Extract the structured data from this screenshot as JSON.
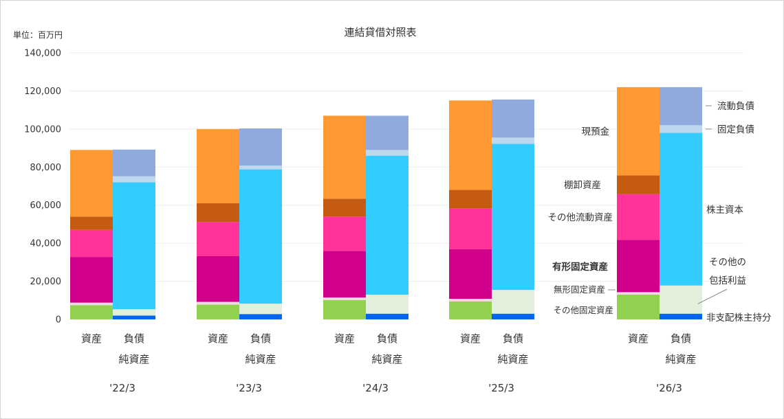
{
  "chart_data": {
    "type": "stacked-bar",
    "title": "連結貸借対照表",
    "unit_label": "単位：百万円",
    "ylim": [
      0,
      140000
    ],
    "yticks": [
      0,
      20000,
      40000,
      60000,
      80000,
      100000,
      120000,
      140000
    ],
    "ytick_labels": [
      "0",
      "20,000",
      "40,000",
      "60,000",
      "80,000",
      "100,000",
      "120,000",
      "140,000"
    ],
    "grid": true,
    "periods": [
      "'22/3",
      "'23/3",
      "'24/3",
      "'25/3",
      "'26/3"
    ],
    "bar_labels": {
      "assets": "資産",
      "liabilities_line1": "負債",
      "liabilities_line2": "純資産"
    },
    "assets_series": [
      {
        "key": "other_fixed",
        "name": "その他固定資産",
        "color": "#92d050",
        "values": [
          7500,
          7800,
          10200,
          9500,
          13000
        ]
      },
      {
        "key": "intangible",
        "name": "無形固定資産",
        "color": "#f2d8e5",
        "values": [
          1300,
          1400,
          1300,
          1300,
          1300
        ]
      },
      {
        "key": "tangible",
        "name": "有形固定資産",
        "color": "#d0008c",
        "values": [
          24000,
          24000,
          24500,
          26000,
          27500
        ]
      },
      {
        "key": "other_current",
        "name": "その他流動資産",
        "color": "#ff3399",
        "values": [
          14200,
          18000,
          18000,
          21400,
          24000
        ]
      },
      {
        "key": "inventory",
        "name": "棚卸資産",
        "color": "#c55a11",
        "values": [
          7000,
          9800,
          9400,
          9800,
          9800
        ]
      },
      {
        "key": "cash",
        "name": "現預金",
        "color": "#ff9933",
        "values": [
          35000,
          39000,
          43600,
          47000,
          46400
        ]
      }
    ],
    "liabilities_series": [
      {
        "key": "non_controlling",
        "name": "非支配株主持分",
        "color": "#0066ee",
        "values": [
          2000,
          2800,
          3000,
          3000,
          3000
        ]
      },
      {
        "key": "aoci",
        "name": "その他の包括利益",
        "color": "#e2efda",
        "values": [
          3300,
          5500,
          10000,
          12500,
          14800
        ]
      },
      {
        "key": "equity",
        "name": "株主資本",
        "color": "#33ccff",
        "values": [
          66700,
          70500,
          73000,
          76700,
          80200
        ]
      },
      {
        "key": "fixed_liab",
        "name": "固定負債",
        "color": "#bdd7ee",
        "values": [
          3200,
          2000,
          3000,
          3300,
          4000
        ]
      },
      {
        "key": "current_liab",
        "name": "流動負債",
        "color": "#8faadc",
        "values": [
          14000,
          19500,
          18000,
          20000,
          20000
        ]
      }
    ],
    "annotations": {
      "cash": "現預金",
      "inventory": "棚卸資産",
      "other_current": "その他流動資産",
      "tangible": "有形固定資産",
      "intangible": "無形固定資産",
      "other_fixed": "その他固定資産",
      "current_liab": "流動負債",
      "fixed_liab": "固定負債",
      "equity": "株主資本",
      "aoci_line1": "その他の",
      "aoci_line2": "包括利益",
      "non_controlling": "非支配株主持分"
    }
  }
}
